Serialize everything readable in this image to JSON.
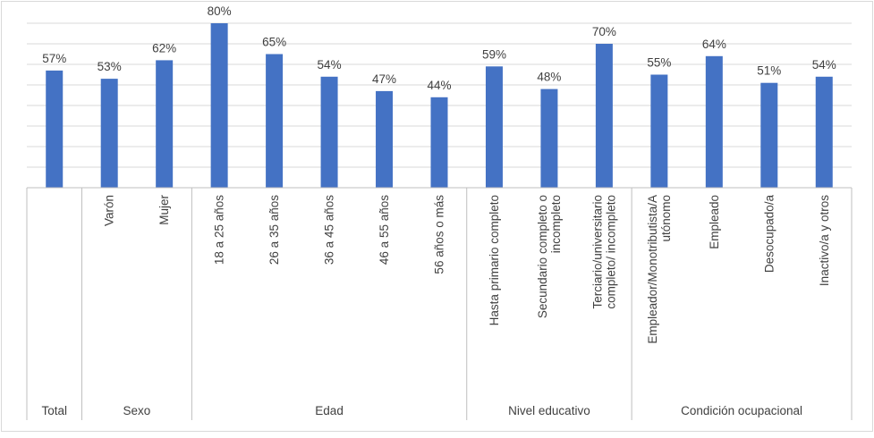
{
  "chart_data": {
    "type": "bar",
    "categories": [
      "Total",
      "Varón",
      "Mujer",
      "18 a 25 años",
      "26 a 35 años",
      "36 a 45 años",
      "46 a 55 años",
      "56 años o más",
      "Hasta primario completo",
      "Secundario completo o incompleto",
      "Terciario/universitario completo/ incompleto",
      "Empleador/Monotributista/A utónomo",
      "Empleado",
      "Desocupado/a",
      "Inactivo/a y otros"
    ],
    "category_lines": [
      [],
      [
        "Varón"
      ],
      [
        "Mujer"
      ],
      [
        "18 a 25 años"
      ],
      [
        "26 a 35 años"
      ],
      [
        "36 a 45 años"
      ],
      [
        "46 a 55 años"
      ],
      [
        "56 años o más"
      ],
      [
        "Hasta primario completo"
      ],
      [
        "Secundario completo o",
        "incompleto"
      ],
      [
        "Terciario/universitario",
        "completo/ incompleto"
      ],
      [
        "Empleador/Monotributista/A",
        "utónomo"
      ],
      [
        "Empleado"
      ],
      [
        "Desocupado/a"
      ],
      [
        "Inactivo/a y otros"
      ]
    ],
    "values": [
      57,
      53,
      62,
      80,
      65,
      54,
      47,
      44,
      59,
      48,
      70,
      55,
      64,
      51,
      54
    ],
    "data_labels": [
      "57%",
      "53%",
      "62%",
      "80%",
      "65%",
      "54%",
      "47%",
      "44%",
      "59%",
      "48%",
      "70%",
      "55%",
      "64%",
      "51%",
      "54%"
    ],
    "groups": [
      {
        "label": "Total",
        "start": 0,
        "end": 0
      },
      {
        "label": "Sexo",
        "start": 1,
        "end": 2
      },
      {
        "label": "Edad",
        "start": 3,
        "end": 7
      },
      {
        "label": "Nivel educativo",
        "start": 8,
        "end": 10
      },
      {
        "label": "Condición ocupacional",
        "start": 11,
        "end": 14
      }
    ],
    "ylim": [
      0,
      80
    ],
    "grid": true,
    "title": "",
    "xlabel": "",
    "ylabel": "",
    "bar_color": "#4472C4",
    "grid_color": "#D9D9D9",
    "axis_color": "#BFBFBF",
    "text_color": "#404040"
  }
}
